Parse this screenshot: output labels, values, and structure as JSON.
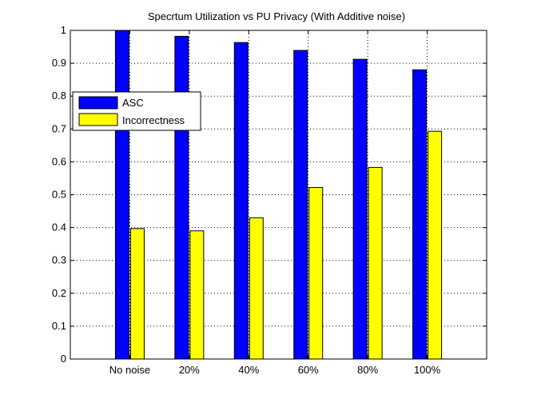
{
  "chart_data": {
    "type": "bar",
    "title": "Specrtum Utilization vs PU Privacy (With Additive noise)",
    "xlabel": "",
    "ylabel": "",
    "categories": [
      "No noise",
      "20%",
      "40%",
      "60%",
      "80%",
      "100%"
    ],
    "series": [
      {
        "name": "ASC",
        "color": "#0000ff",
        "values": [
          1.0,
          0.982,
          0.963,
          0.939,
          0.912,
          0.88
        ]
      },
      {
        "name": "Incorrectness",
        "color": "#ffff00",
        "values": [
          0.397,
          0.39,
          0.43,
          0.522,
          0.583,
          0.693
        ]
      }
    ],
    "ylim": [
      0,
      1
    ],
    "yticks": [
      "0",
      "0.1",
      "0.2",
      "0.3",
      "0.4",
      "0.5",
      "0.6",
      "0.7",
      "0.8",
      "0.9",
      "1"
    ],
    "xlim": [
      0,
      7
    ],
    "grid": true,
    "legend_position": "top-left"
  }
}
